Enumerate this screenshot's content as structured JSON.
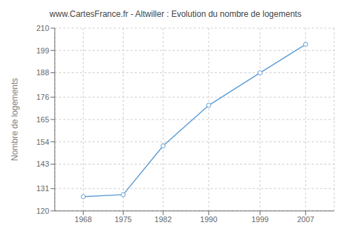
{
  "chart_data": {
    "type": "line",
    "title": "www.CartesFrance.fr - Altwiller : Evolution du nombre de logements",
    "ylabel": "Nombre de logements",
    "x": [
      1968,
      1975,
      1982,
      1990,
      1999,
      2007
    ],
    "values": [
      127,
      128,
      152,
      172,
      188,
      202
    ],
    "xlim": [
      1963,
      2012
    ],
    "ylim": [
      120,
      210
    ],
    "xticks": [
      1968,
      1975,
      1982,
      1990,
      1999,
      2007
    ],
    "yticks": [
      120,
      131,
      143,
      154,
      165,
      176,
      188,
      199,
      210
    ],
    "color": "#5b9bd5",
    "marker": "circle",
    "grid": true
  }
}
